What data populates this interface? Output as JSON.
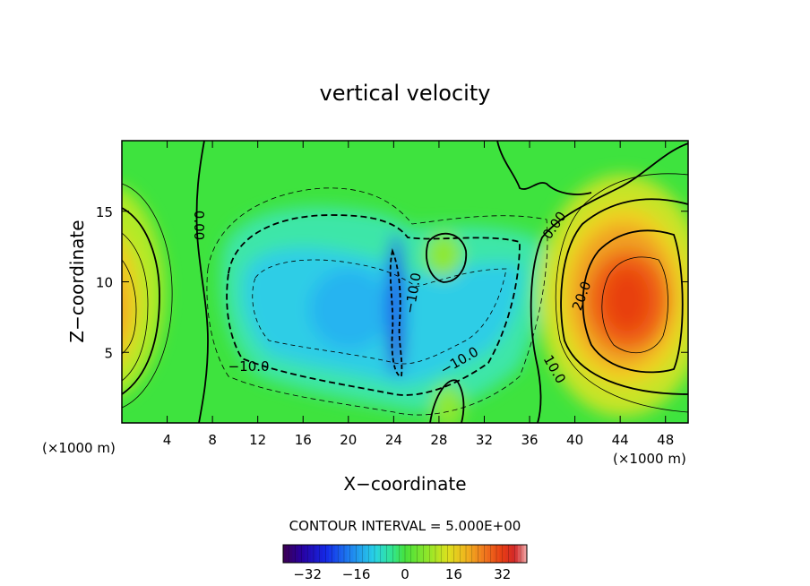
{
  "chart_data": {
    "type": "heatmap",
    "title": "vertical velocity",
    "xlabel": "X−coordinate",
    "ylabel": "Z−coordinate",
    "xlim": [
      0,
      50
    ],
    "ylim": [
      0,
      20
    ],
    "x_ticks": [
      4,
      8,
      12,
      16,
      20,
      24,
      28,
      32,
      36,
      40,
      44,
      48
    ],
    "x_tick_labels": [
      "4",
      "8",
      "12",
      "16",
      "20",
      "24",
      "28",
      "32",
      "36",
      "40",
      "44",
      "48"
    ],
    "y_ticks": [
      5,
      10,
      15
    ],
    "y_tick_labels": [
      "5",
      "10",
      "15"
    ],
    "x_unit_label": "(×1000 m)",
    "y_unit_label": "(×1000 m)",
    "contour_interval_label": "CONTOUR INTERVAL = 5.000E+00",
    "contour_interval": 5,
    "contour_labels": [
      {
        "text": "0.00",
        "x": 6.8,
        "z": 14.0,
        "rotate": 90
      },
      {
        "text": "0.00",
        "x": 38.2,
        "z": 14.0,
        "rotate": -55
      },
      {
        "text": "20.0",
        "x": 40.6,
        "z": 9.0,
        "rotate": -70
      },
      {
        "text": "10.0",
        "x": 38.2,
        "z": 3.8,
        "rotate": 60
      },
      {
        "text": "−10.0",
        "x": 11.2,
        "z": 4.0,
        "rotate": 0
      },
      {
        "text": "−10.0",
        "x": 25.7,
        "z": 9.2,
        "rotate": -80
      },
      {
        "text": "−10.0",
        "x": 29.8,
        "z": 4.4,
        "rotate": -30
      }
    ],
    "features": [
      {
        "name": "left updraft",
        "x_center": 0.2,
        "z_center": 8.5,
        "peak": 22
      },
      {
        "name": "central downdraft",
        "x_center": 19.0,
        "z_center": 8.5,
        "peak": -12
      },
      {
        "name": "narrow downdraft core",
        "x_center": 24.3,
        "z_center": 7.5,
        "peak": -22
      },
      {
        "name": "right updraft",
        "x_center": 43.5,
        "z_center": 8.5,
        "peak": 30
      }
    ],
    "colorbar": {
      "min": -40,
      "max": 40,
      "ticks": [
        -32,
        -16,
        0,
        16,
        32
      ],
      "tick_labels": [
        "−32",
        "−16",
        "0",
        "16",
        "32"
      ]
    }
  }
}
